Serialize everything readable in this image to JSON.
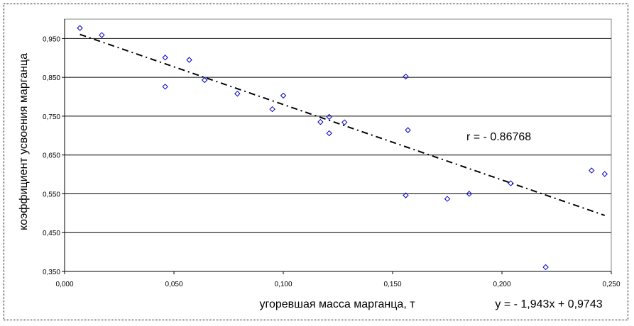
{
  "chart_data": {
    "type": "scatter",
    "xlabel": "угоревшая масса марганца, т",
    "ylabel": "коэффициент усвоения марганца",
    "xlim": [
      0,
      0.25
    ],
    "ylim": [
      0.35,
      1.0
    ],
    "x_ticks": [
      "0,000",
      "0,050",
      "0,100",
      "0,150",
      "0,200",
      "0,250"
    ],
    "x_tick_values": [
      0,
      0.05,
      0.1,
      0.15,
      0.2,
      0.25
    ],
    "y_ticks": [
      "0,350",
      "0,450",
      "0,550",
      "0,650",
      "0,750",
      "0,850",
      "0,950"
    ],
    "y_tick_values": [
      0.35,
      0.45,
      0.55,
      0.65,
      0.75,
      0.85,
      0.95
    ],
    "grid": "horizontal",
    "marker": "diamond",
    "marker_color": "#0000CC",
    "points": [
      [
        0.007,
        0.977
      ],
      [
        0.017,
        0.959
      ],
      [
        0.046,
        0.826
      ],
      [
        0.046,
        0.901
      ],
      [
        0.057,
        0.895
      ],
      [
        0.064,
        0.843
      ],
      [
        0.079,
        0.808
      ],
      [
        0.095,
        0.768
      ],
      [
        0.1,
        0.803
      ],
      [
        0.117,
        0.735
      ],
      [
        0.121,
        0.748
      ],
      [
        0.121,
        0.706
      ],
      [
        0.128,
        0.734
      ],
      [
        0.156,
        0.852
      ],
      [
        0.157,
        0.714
      ],
      [
        0.156,
        0.546
      ],
      [
        0.175,
        0.537
      ],
      [
        0.185,
        0.55
      ],
      [
        0.204,
        0.577
      ],
      [
        0.22,
        0.361
      ],
      [
        0.241,
        0.61
      ],
      [
        0.247,
        0.601
      ]
    ],
    "trendline": {
      "slope": -1.943,
      "intercept": 0.9743,
      "x_range": [
        0.007,
        0.247
      ],
      "style": "dash-dot",
      "color": "#000000"
    },
    "annotations": {
      "equation": "y = - 1,943x + 0,9743",
      "correlation": "r  = - 0.86768"
    }
  }
}
